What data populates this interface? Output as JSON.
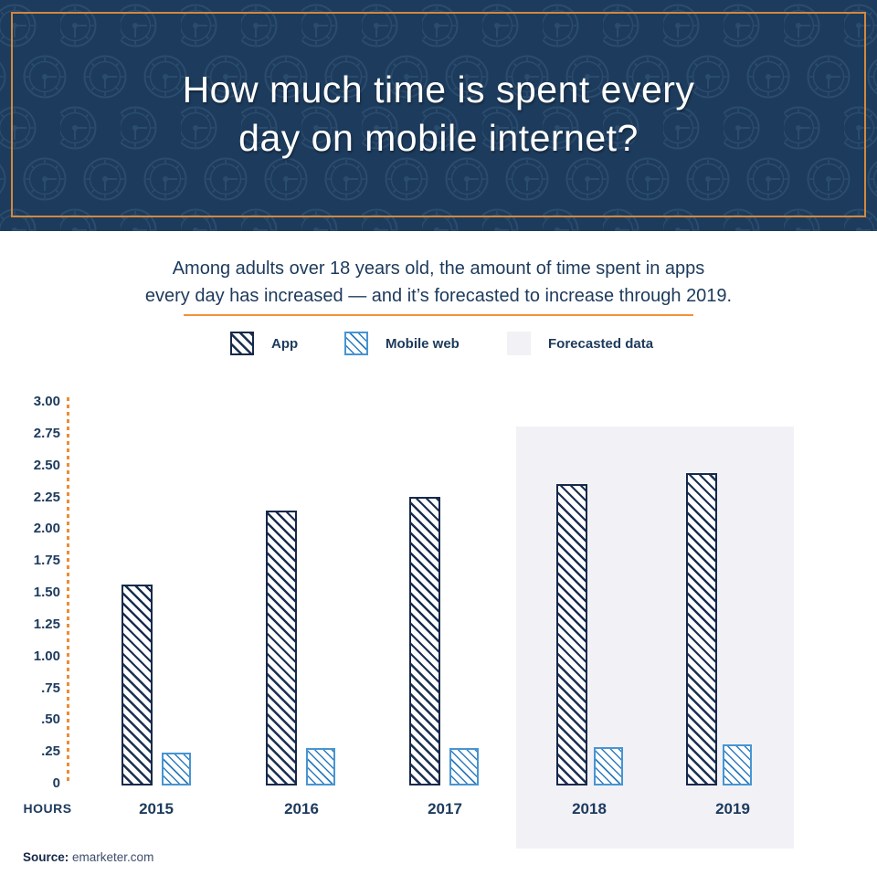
{
  "header": {
    "title_lines": [
      "How much time is spent every",
      "day on mobile internet?"
    ]
  },
  "intro": {
    "lines": [
      "Among adults over 18 years old, the amount of time spent in apps",
      "every day has increased — and it’s forecasted to increase through 2019."
    ]
  },
  "legend": {
    "items": [
      {
        "label": "App",
        "swatch": "app-hatch"
      },
      {
        "label": "Mobile web",
        "swatch": "mobile-web-hatch"
      },
      {
        "label": "Forecasted data",
        "swatch": "forecast-fill"
      }
    ]
  },
  "chart_data": {
    "type": "bar",
    "title": "How much time is spent every day on mobile internet?",
    "categories": [
      "2015",
      "2016",
      "2017",
      "2018",
      "2019"
    ],
    "series": [
      {
        "name": "App",
        "values": [
          1.57,
          2.15,
          2.26,
          2.36,
          2.44
        ]
      },
      {
        "name": "Mobile web",
        "values": [
          0.26,
          0.29,
          0.29,
          0.3,
          0.32
        ]
      }
    ],
    "forecast_categories": [
      "2018",
      "2019"
    ],
    "ylabel": "HOURS",
    "ylim": [
      0,
      3
    ],
    "ytick_step": 0.25,
    "ytick_labels": [
      "3.00",
      "2.75",
      "2.50",
      "2.25",
      "2.00",
      "1.75",
      "1.50",
      "1.25",
      "1.00",
      ".75",
      ".50",
      ".25",
      "0"
    ],
    "grid": false,
    "legend_position": "top"
  },
  "source": {
    "label": "Source:",
    "value": "emarketer.com"
  },
  "colors": {
    "banner_bg": "#1D3B5C",
    "banner_border": "#D1893E",
    "clock_pattern": "#35597D",
    "navy_dark": "#16294A",
    "text_navy": "#1D3A5C",
    "blue": "#2E7CC0",
    "blue_border": "#4795D2",
    "divider_orange": "#F39237",
    "axis_orange": "#ED8C33",
    "forecast_bg": "#F1F1F6"
  }
}
